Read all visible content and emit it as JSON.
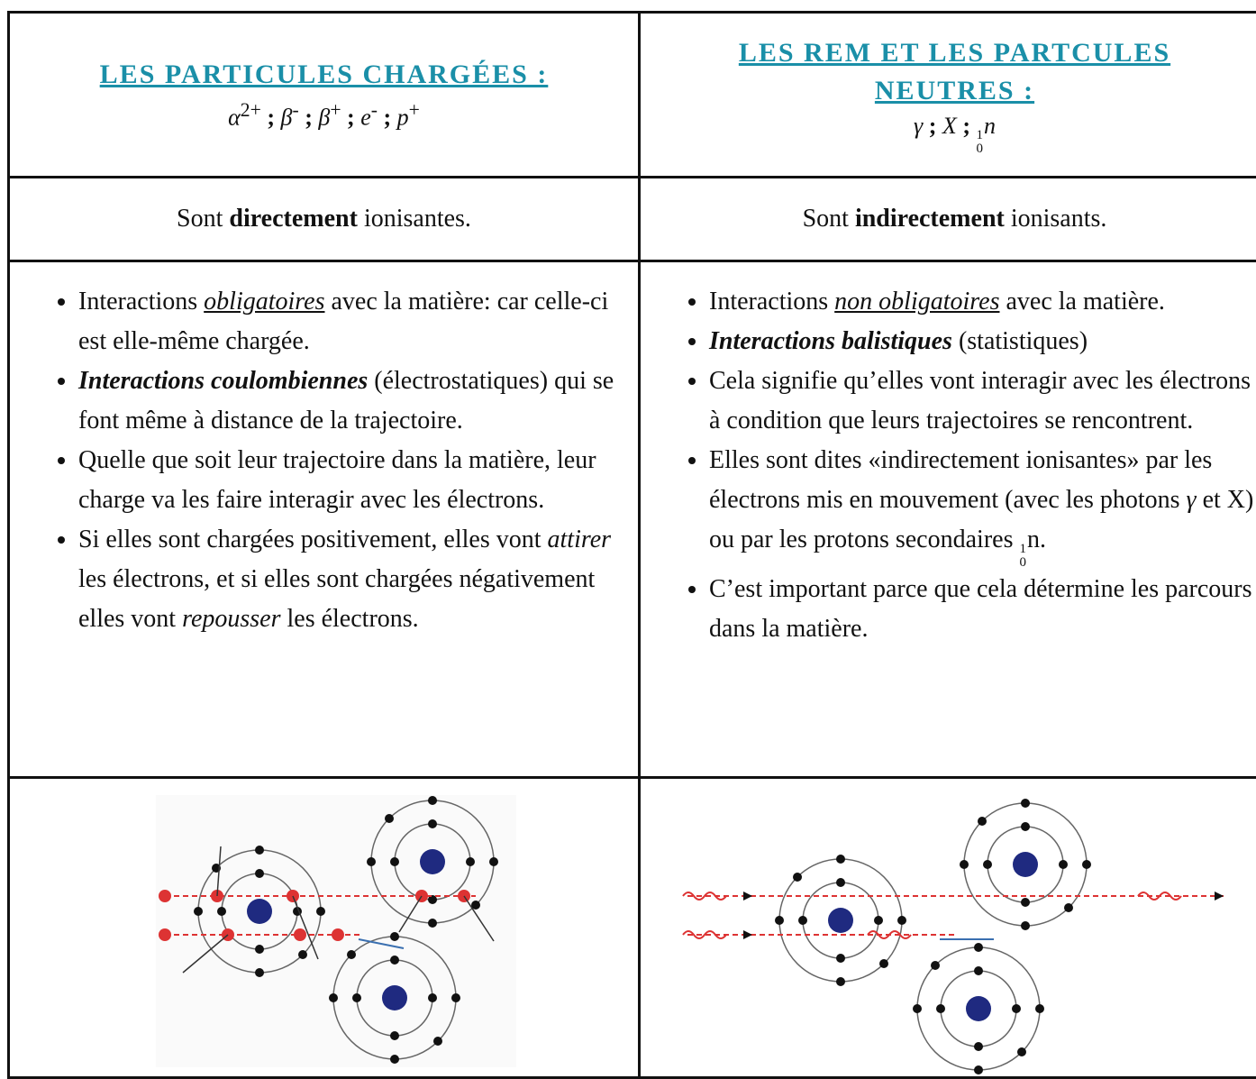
{
  "table": {
    "header": [
      {
        "title": [
          "LES PARTICULES CHARGÉES :"
        ],
        "formula": [
          {
            "symbol": "α",
            "sup": "2+"
          },
          {
            "text": " ; "
          },
          {
            "symbol": "β",
            "sup": "-"
          },
          {
            "text": " ; "
          },
          {
            "symbol": "β",
            "sup": "+"
          },
          {
            "text": " ; "
          },
          {
            "symbol": "e",
            "sup": "-"
          },
          {
            "text": " ; "
          },
          {
            "symbol": "p",
            "sup": "+"
          }
        ]
      },
      {
        "title": [
          "LES REM ET LES PARTCULES",
          "NEUTRES :"
        ],
        "formula": [
          {
            "symbol": "γ"
          },
          {
            "text": " ; "
          },
          {
            "symbol": "X"
          },
          {
            "text": " ; "
          },
          {
            "sup": "1",
            "sub": "0",
            "symbol": "n"
          }
        ]
      }
    ],
    "ionisation": [
      [
        {
          "text": "Sont "
        },
        {
          "text": "directement",
          "style": "bold"
        },
        {
          "text": " ionisantes."
        }
      ],
      [
        {
          "text": "Sont "
        },
        {
          "text": "indirectement",
          "style": "bold"
        },
        {
          "text": " ionisants."
        }
      ]
    ],
    "bullets": [
      [
        [
          {
            "text": "Interactions "
          },
          {
            "text": "obligatoires",
            "style": "underline-italic"
          },
          {
            "text": " avec la matière: car celle-ci est elle-même chargée."
          }
        ],
        [
          {
            "text": "Interactions coulombiennes",
            "style": "bold-italic"
          },
          {
            "text": " (électrostatiques) qui se font même à distance de la trajectoire."
          }
        ],
        [
          {
            "text": "Quelle que soit leur trajectoire dans la matière, leur charge va les faire interagir avec les électrons."
          }
        ],
        [
          {
            "text": "Si elles sont chargées positivement, elles vont "
          },
          {
            "text": "attirer",
            "style": "italic"
          },
          {
            "text": " les électrons, et si elles sont chargées négativement elles vont "
          },
          {
            "text": "repousser",
            "style": "italic"
          },
          {
            "text": " les électrons."
          }
        ]
      ],
      [
        [
          {
            "text": "Interactions "
          },
          {
            "text": "non obligatoires",
            "style": "underline-italic"
          },
          {
            "text": " avec la matière."
          }
        ],
        [
          {
            "text": "Interactions balistiques",
            "style": "bold-italic"
          },
          {
            "text": " (statistiques)"
          }
        ],
        [
          {
            "text": "Cela signifie qu’elles vont interagir avec les électrons à condition que leurs trajectoires se rencontrent."
          }
        ],
        [
          {
            "text": "Elles sont dites «indirectement ionisantes» par les électrons mis en mouvement (avec les photons "
          },
          {
            "text": "γ",
            "style": "italic"
          },
          {
            "text": " et X) ou par les protons secondaires "
          },
          {
            "sup": "1",
            "sub": "0",
            "symbol": "n"
          },
          {
            "text": "."
          }
        ],
        [
          {
            "text": "C’est important parce que cela détermine les parcours dans la matière."
          }
        ]
      ]
    ]
  }
}
